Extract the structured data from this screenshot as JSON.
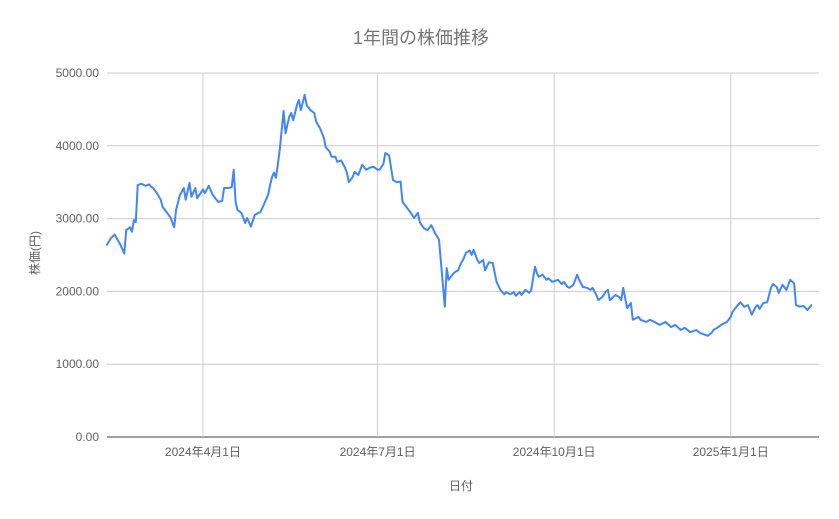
{
  "chart_data": {
    "type": "line",
    "title": "1年間の株価推移",
    "xlabel": "日付",
    "ylabel": "株価(円)",
    "ylim": [
      0,
      5000
    ],
    "x_domain": [
      "2024-02-11",
      "2025-02-16"
    ],
    "grid": true,
    "legend": "none",
    "colors": {
      "line": "#4285f4",
      "grid": "#cccccc",
      "baseline": "#424242",
      "title_text": "#757575",
      "tick_text": "#616161",
      "background": "#ffffff"
    },
    "y_ticks": [
      {
        "value": 0,
        "label": "0.00"
      },
      {
        "value": 1000,
        "label": "1000.00"
      },
      {
        "value": 2000,
        "label": "2000.00"
      },
      {
        "value": 3000,
        "label": "3000.00"
      },
      {
        "value": 4000,
        "label": "4000.00"
      },
      {
        "value": 5000,
        "label": "5000.00"
      }
    ],
    "x_ticks": [
      {
        "date": "2024-04-01",
        "label": "2024年4月1日"
      },
      {
        "date": "2024-07-01",
        "label": "2024年7月1日"
      },
      {
        "date": "2024-10-01",
        "label": "2024年10月1日"
      },
      {
        "date": "2025-01-01",
        "label": "2025年1月1日"
      }
    ],
    "series": [
      {
        "name": "株価",
        "color": "#4285f4",
        "points": [
          [
            "2024-02-11",
            2640
          ],
          [
            "2024-02-13",
            2730
          ],
          [
            "2024-02-15",
            2780
          ],
          [
            "2024-02-18",
            2640
          ],
          [
            "2024-02-20",
            2520
          ],
          [
            "2024-02-21",
            2840
          ],
          [
            "2024-02-23",
            2880
          ],
          [
            "2024-02-24",
            2820
          ],
          [
            "2024-02-25",
            2980
          ],
          [
            "2024-02-26",
            2950
          ],
          [
            "2024-02-27",
            3460
          ],
          [
            "2024-02-29",
            3480
          ],
          [
            "2024-03-02",
            3450
          ],
          [
            "2024-03-04",
            3470
          ],
          [
            "2024-03-05",
            3440
          ],
          [
            "2024-03-06",
            3420
          ],
          [
            "2024-03-08",
            3350
          ],
          [
            "2024-03-10",
            3260
          ],
          [
            "2024-03-11",
            3160
          ],
          [
            "2024-03-13",
            3090
          ],
          [
            "2024-03-15",
            3020
          ],
          [
            "2024-03-17",
            2880
          ],
          [
            "2024-03-18",
            3120
          ],
          [
            "2024-03-20",
            3320
          ],
          [
            "2024-03-22",
            3420
          ],
          [
            "2024-03-23",
            3260
          ],
          [
            "2024-03-25",
            3490
          ],
          [
            "2024-03-26",
            3300
          ],
          [
            "2024-03-28",
            3420
          ],
          [
            "2024-03-29",
            3280
          ],
          [
            "2024-04-01",
            3400
          ],
          [
            "2024-04-02",
            3350
          ],
          [
            "2024-04-04",
            3450
          ],
          [
            "2024-04-06",
            3330
          ],
          [
            "2024-04-08",
            3260
          ],
          [
            "2024-04-09",
            3230
          ],
          [
            "2024-04-11",
            3240
          ],
          [
            "2024-04-12",
            3420
          ],
          [
            "2024-04-14",
            3420
          ],
          [
            "2024-04-16",
            3430
          ],
          [
            "2024-04-17",
            3670
          ],
          [
            "2024-04-18",
            3230
          ],
          [
            "2024-04-19",
            3120
          ],
          [
            "2024-04-21",
            3080
          ],
          [
            "2024-04-22",
            3010
          ],
          [
            "2024-04-23",
            2940
          ],
          [
            "2024-04-24",
            3010
          ],
          [
            "2024-04-26",
            2890
          ],
          [
            "2024-04-28",
            3050
          ],
          [
            "2024-04-30",
            3080
          ],
          [
            "2024-05-01",
            3090
          ],
          [
            "2024-05-03",
            3210
          ],
          [
            "2024-05-05",
            3330
          ],
          [
            "2024-05-06",
            3460
          ],
          [
            "2024-05-07",
            3570
          ],
          [
            "2024-05-08",
            3630
          ],
          [
            "2024-05-09",
            3560
          ],
          [
            "2024-05-10",
            3740
          ],
          [
            "2024-05-11",
            3940
          ],
          [
            "2024-05-13",
            4480
          ],
          [
            "2024-05-14",
            4170
          ],
          [
            "2024-05-15",
            4290
          ],
          [
            "2024-05-16",
            4400
          ],
          [
            "2024-05-17",
            4450
          ],
          [
            "2024-05-18",
            4350
          ],
          [
            "2024-05-20",
            4560
          ],
          [
            "2024-05-21",
            4630
          ],
          [
            "2024-05-22",
            4490
          ],
          [
            "2024-05-24",
            4700
          ],
          [
            "2024-05-25",
            4560
          ],
          [
            "2024-05-27",
            4490
          ],
          [
            "2024-05-29",
            4450
          ],
          [
            "2024-05-30",
            4330
          ],
          [
            "2024-06-01",
            4240
          ],
          [
            "2024-06-03",
            4110
          ],
          [
            "2024-06-04",
            3980
          ],
          [
            "2024-06-06",
            3920
          ],
          [
            "2024-06-07",
            3850
          ],
          [
            "2024-06-09",
            3850
          ],
          [
            "2024-06-10",
            3780
          ],
          [
            "2024-06-12",
            3800
          ],
          [
            "2024-06-14",
            3700
          ],
          [
            "2024-06-15",
            3630
          ],
          [
            "2024-06-16",
            3500
          ],
          [
            "2024-06-18",
            3570
          ],
          [
            "2024-06-19",
            3640
          ],
          [
            "2024-06-21",
            3600
          ],
          [
            "2024-06-23",
            3740
          ],
          [
            "2024-06-25",
            3670
          ],
          [
            "2024-06-27",
            3700
          ],
          [
            "2024-06-29",
            3710
          ],
          [
            "2024-07-01",
            3670
          ],
          [
            "2024-07-02",
            3670
          ],
          [
            "2024-07-04",
            3750
          ],
          [
            "2024-07-05",
            3900
          ],
          [
            "2024-07-07",
            3870
          ],
          [
            "2024-07-09",
            3530
          ],
          [
            "2024-07-11",
            3500
          ],
          [
            "2024-07-13",
            3510
          ],
          [
            "2024-07-14",
            3230
          ],
          [
            "2024-07-16",
            3160
          ],
          [
            "2024-07-18",
            3090
          ],
          [
            "2024-07-20",
            3010
          ],
          [
            "2024-07-22",
            3080
          ],
          [
            "2024-07-23",
            2950
          ],
          [
            "2024-07-25",
            2870
          ],
          [
            "2024-07-27",
            2840
          ],
          [
            "2024-07-29",
            2910
          ],
          [
            "2024-07-31",
            2800
          ],
          [
            "2024-08-02",
            2710
          ],
          [
            "2024-08-05",
            1790
          ],
          [
            "2024-08-06",
            2320
          ],
          [
            "2024-08-07",
            2160
          ],
          [
            "2024-08-09",
            2230
          ],
          [
            "2024-08-10",
            2260
          ],
          [
            "2024-08-12",
            2290
          ],
          [
            "2024-08-13",
            2360
          ],
          [
            "2024-08-15",
            2460
          ],
          [
            "2024-08-16",
            2530
          ],
          [
            "2024-08-18",
            2560
          ],
          [
            "2024-08-19",
            2500
          ],
          [
            "2024-08-20",
            2570
          ],
          [
            "2024-08-22",
            2430
          ],
          [
            "2024-08-23",
            2390
          ],
          [
            "2024-08-25",
            2430
          ],
          [
            "2024-08-26",
            2290
          ],
          [
            "2024-08-28",
            2400
          ],
          [
            "2024-08-30",
            2390
          ],
          [
            "2024-09-01",
            2130
          ],
          [
            "2024-09-03",
            2020
          ],
          [
            "2024-09-05",
            1960
          ],
          [
            "2024-09-06",
            1990
          ],
          [
            "2024-09-08",
            1960
          ],
          [
            "2024-09-10",
            1990
          ],
          [
            "2024-09-11",
            1940
          ],
          [
            "2024-09-13",
            1990
          ],
          [
            "2024-09-14",
            1950
          ],
          [
            "2024-09-16",
            2020
          ],
          [
            "2024-09-18",
            1980
          ],
          [
            "2024-09-19",
            2010
          ],
          [
            "2024-09-21",
            2340
          ],
          [
            "2024-09-22",
            2250
          ],
          [
            "2024-09-23",
            2200
          ],
          [
            "2024-09-25",
            2230
          ],
          [
            "2024-09-27",
            2160
          ],
          [
            "2024-09-28",
            2180
          ],
          [
            "2024-09-30",
            2130
          ],
          [
            "2024-10-01",
            2140
          ],
          [
            "2024-10-03",
            2160
          ],
          [
            "2024-10-05",
            2100
          ],
          [
            "2024-10-06",
            2130
          ],
          [
            "2024-10-08",
            2060
          ],
          [
            "2024-10-09",
            2050
          ],
          [
            "2024-10-11",
            2090
          ],
          [
            "2024-10-13",
            2230
          ],
          [
            "2024-10-14",
            2160
          ],
          [
            "2024-10-16",
            2060
          ],
          [
            "2024-10-18",
            2050
          ],
          [
            "2024-10-20",
            2020
          ],
          [
            "2024-10-21",
            2050
          ],
          [
            "2024-10-23",
            1950
          ],
          [
            "2024-10-24",
            1880
          ],
          [
            "2024-10-26",
            1920
          ],
          [
            "2024-10-28",
            2000
          ],
          [
            "2024-10-29",
            2020
          ],
          [
            "2024-10-30",
            1880
          ],
          [
            "2024-11-02",
            1950
          ],
          [
            "2024-11-04",
            1920
          ],
          [
            "2024-11-05",
            1880
          ],
          [
            "2024-11-06",
            2050
          ],
          [
            "2024-11-08",
            1770
          ],
          [
            "2024-11-10",
            1840
          ],
          [
            "2024-11-11",
            1610
          ],
          [
            "2024-11-14",
            1650
          ],
          [
            "2024-11-15",
            1610
          ],
          [
            "2024-11-18",
            1580
          ],
          [
            "2024-11-20",
            1610
          ],
          [
            "2024-11-23",
            1570
          ],
          [
            "2024-11-25",
            1540
          ],
          [
            "2024-11-28",
            1580
          ],
          [
            "2024-12-01",
            1510
          ],
          [
            "2024-12-03",
            1540
          ],
          [
            "2024-12-06",
            1470
          ],
          [
            "2024-12-08",
            1500
          ],
          [
            "2024-12-11",
            1440
          ],
          [
            "2024-12-14",
            1470
          ],
          [
            "2024-12-16",
            1430
          ],
          [
            "2024-12-19",
            1400
          ],
          [
            "2024-12-20",
            1390
          ],
          [
            "2024-12-22",
            1430
          ],
          [
            "2024-12-23",
            1470
          ],
          [
            "2024-12-25",
            1500
          ],
          [
            "2024-12-27",
            1540
          ],
          [
            "2024-12-30",
            1580
          ],
          [
            "2025-01-01",
            1650
          ],
          [
            "2025-01-02",
            1720
          ],
          [
            "2025-01-04",
            1790
          ],
          [
            "2025-01-06",
            1850
          ],
          [
            "2025-01-08",
            1790
          ],
          [
            "2025-01-10",
            1810
          ],
          [
            "2025-01-11",
            1745
          ],
          [
            "2025-01-12",
            1680
          ],
          [
            "2025-01-14",
            1790
          ],
          [
            "2025-01-15",
            1810
          ],
          [
            "2025-01-16",
            1760
          ],
          [
            "2025-01-18",
            1840
          ],
          [
            "2025-01-20",
            1850
          ],
          [
            "2025-01-22",
            2050
          ],
          [
            "2025-01-23",
            2100
          ],
          [
            "2025-01-25",
            2060
          ],
          [
            "2025-01-26",
            1980
          ],
          [
            "2025-01-28",
            2090
          ],
          [
            "2025-01-30",
            2020
          ],
          [
            "2025-02-01",
            2160
          ],
          [
            "2025-02-03",
            2110
          ],
          [
            "2025-02-04",
            1810
          ],
          [
            "2025-02-06",
            1790
          ],
          [
            "2025-02-08",
            1800
          ],
          [
            "2025-02-10",
            1745
          ],
          [
            "2025-02-12",
            1810
          ]
        ]
      }
    ]
  }
}
